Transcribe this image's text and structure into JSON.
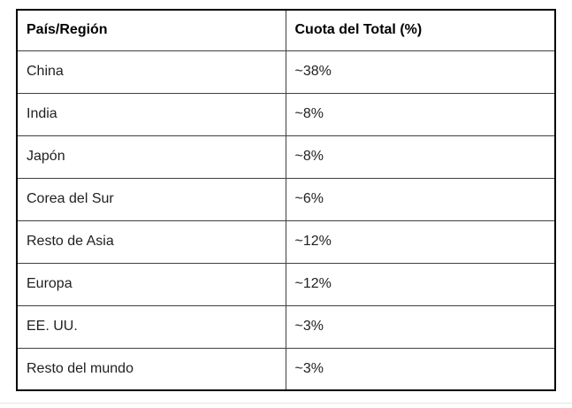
{
  "chart_data": {
    "type": "table",
    "columns": [
      "País/Región",
      "Cuota del Total (%)"
    ],
    "rows": [
      [
        "China",
        "~38%"
      ],
      [
        "India",
        "~8%"
      ],
      [
        "Japón",
        "~8%"
      ],
      [
        "Corea del Sur",
        "~6%"
      ],
      [
        "Resto de Asia",
        "~12%"
      ],
      [
        "Europa",
        "~12%"
      ],
      [
        "EE. UU.",
        "~3%"
      ],
      [
        "Resto del mundo",
        "~3%"
      ]
    ]
  },
  "colors": {
    "outer_border": "#000000",
    "inner_border": "#3f3f3f",
    "text": "#1f1f1f",
    "bottom_divider": "#e3e3e3",
    "background": "#ffffff"
  }
}
